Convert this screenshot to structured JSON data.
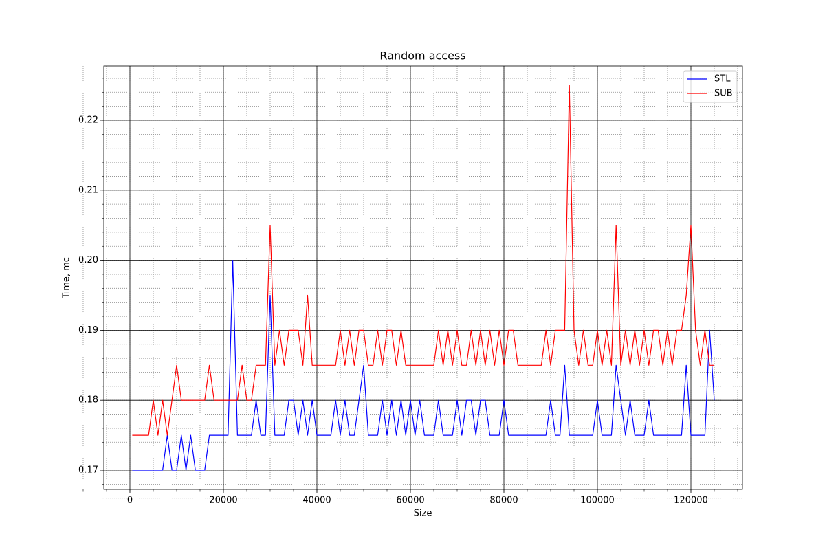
{
  "chart_data": {
    "type": "line",
    "title": "Random access",
    "x_label": "Size",
    "y_label": "Time, mc",
    "x": [
      500,
      1000,
      2000,
      3000,
      4000,
      5000,
      6000,
      7000,
      8000,
      9000,
      10000,
      11000,
      12000,
      13000,
      14000,
      15000,
      16000,
      17000,
      18000,
      19000,
      20000,
      21000,
      22000,
      23000,
      24000,
      25000,
      26000,
      27000,
      28000,
      29000,
      30000,
      31000,
      32000,
      33000,
      34000,
      35000,
      36000,
      37000,
      38000,
      39000,
      40000,
      41000,
      42000,
      43000,
      44000,
      45000,
      46000,
      47000,
      48000,
      49000,
      50000,
      51000,
      52000,
      53000,
      54000,
      55000,
      56000,
      57000,
      58000,
      59000,
      60000,
      61000,
      62000,
      63000,
      64000,
      65000,
      66000,
      67000,
      68000,
      69000,
      70000,
      71000,
      72000,
      73000,
      74000,
      75000,
      76000,
      77000,
      78000,
      79000,
      80000,
      81000,
      82000,
      83000,
      84000,
      85000,
      86000,
      87000,
      88000,
      89000,
      90000,
      91000,
      92000,
      93000,
      94000,
      95000,
      96000,
      97000,
      98000,
      99000,
      100000,
      101000,
      102000,
      103000,
      104000,
      105000,
      106000,
      107000,
      108000,
      109000,
      110000,
      111000,
      112000,
      113000,
      114000,
      115000,
      116000,
      117000,
      118000,
      119000,
      120000,
      121000,
      122000,
      123000,
      124000,
      125000
    ],
    "series": [
      {
        "name": "STL",
        "color": "#0000ff",
        "values": [
          0.17,
          0.17,
          0.17,
          0.17,
          0.17,
          0.17,
          0.17,
          0.17,
          0.175,
          0.17,
          0.17,
          0.175,
          0.17,
          0.175,
          0.17,
          0.17,
          0.17,
          0.175,
          0.175,
          0.175,
          0.175,
          0.175,
          0.2,
          0.175,
          0.175,
          0.175,
          0.175,
          0.18,
          0.175,
          0.175,
          0.195,
          0.175,
          0.175,
          0.175,
          0.18,
          0.18,
          0.175,
          0.18,
          0.175,
          0.18,
          0.175,
          0.175,
          0.175,
          0.175,
          0.18,
          0.175,
          0.18,
          0.175,
          0.175,
          0.18,
          0.185,
          0.175,
          0.175,
          0.175,
          0.18,
          0.175,
          0.18,
          0.175,
          0.18,
          0.175,
          0.18,
          0.175,
          0.18,
          0.175,
          0.175,
          0.175,
          0.18,
          0.175,
          0.175,
          0.175,
          0.18,
          0.175,
          0.18,
          0.18,
          0.175,
          0.18,
          0.18,
          0.175,
          0.175,
          0.175,
          0.18,
          0.175,
          0.175,
          0.175,
          0.175,
          0.175,
          0.175,
          0.175,
          0.175,
          0.175,
          0.18,
          0.175,
          0.175,
          0.185,
          0.175,
          0.175,
          0.175,
          0.175,
          0.175,
          0.175,
          0.18,
          0.175,
          0.175,
          0.175,
          0.185,
          0.18,
          0.175,
          0.18,
          0.175,
          0.175,
          0.175,
          0.18,
          0.175,
          0.175,
          0.175,
          0.175,
          0.175,
          0.175,
          0.175,
          0.185,
          0.175,
          0.175,
          0.175,
          0.175,
          0.19,
          0.18
        ]
      },
      {
        "name": "SUB",
        "color": "#ff0000",
        "values": [
          0.175,
          0.175,
          0.175,
          0.175,
          0.175,
          0.18,
          0.175,
          0.18,
          0.175,
          0.18,
          0.185,
          0.18,
          0.18,
          0.18,
          0.18,
          0.18,
          0.18,
          0.185,
          0.18,
          0.18,
          0.18,
          0.18,
          0.18,
          0.18,
          0.185,
          0.18,
          0.18,
          0.185,
          0.185,
          0.185,
          0.205,
          0.185,
          0.19,
          0.185,
          0.19,
          0.19,
          0.19,
          0.185,
          0.195,
          0.185,
          0.185,
          0.185,
          0.185,
          0.185,
          0.185,
          0.19,
          0.185,
          0.19,
          0.185,
          0.19,
          0.19,
          0.185,
          0.185,
          0.19,
          0.185,
          0.19,
          0.19,
          0.185,
          0.19,
          0.185,
          0.185,
          0.185,
          0.185,
          0.185,
          0.185,
          0.185,
          0.19,
          0.185,
          0.19,
          0.185,
          0.19,
          0.185,
          0.185,
          0.19,
          0.185,
          0.19,
          0.185,
          0.19,
          0.185,
          0.19,
          0.185,
          0.19,
          0.19,
          0.185,
          0.185,
          0.185,
          0.185,
          0.185,
          0.185,
          0.19,
          0.185,
          0.19,
          0.19,
          0.19,
          0.225,
          0.19,
          0.185,
          0.19,
          0.185,
          0.185,
          0.19,
          0.185,
          0.19,
          0.185,
          0.205,
          0.185,
          0.19,
          0.185,
          0.19,
          0.185,
          0.19,
          0.185,
          0.19,
          0.19,
          0.185,
          0.19,
          0.185,
          0.19,
          0.19,
          0.195,
          0.205,
          0.19,
          0.185,
          0.19,
          0.185,
          0.185
        ]
      }
    ],
    "xlim": [
      -5588,
      131029
    ],
    "ylim": [
      0.16725,
      0.22776
    ],
    "xticks": [
      0,
      20000,
      40000,
      60000,
      80000,
      100000,
      120000
    ],
    "yticks": [
      0.17,
      0.18,
      0.19,
      {
        "value": 0.2,
        "label": "0.20"
      },
      0.21,
      0.22
    ],
    "grid": true,
    "minor_grid": true,
    "legend": "upper right"
  }
}
